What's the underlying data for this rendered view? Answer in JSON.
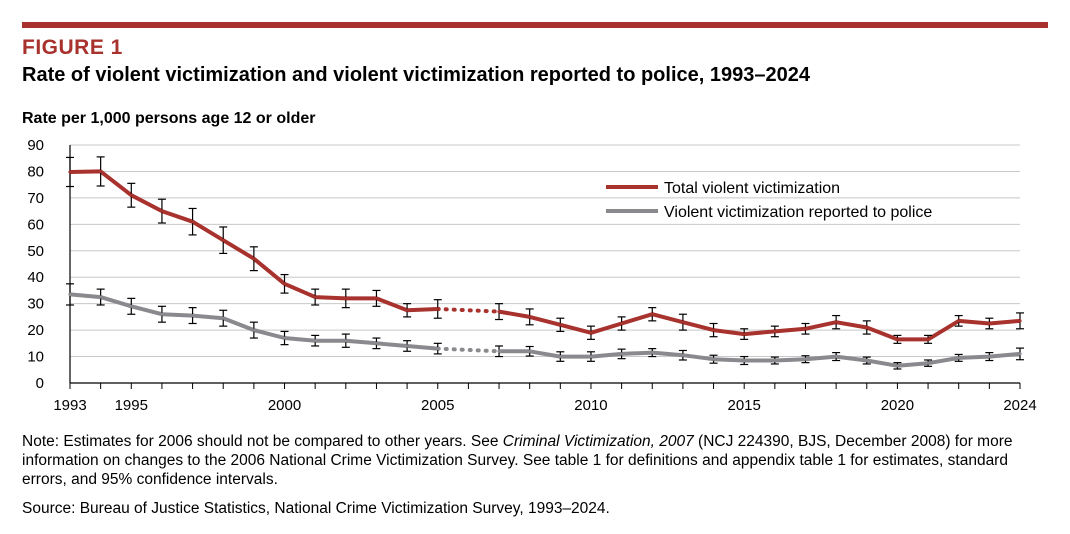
{
  "figure": {
    "label": "FIGURE 1",
    "title": "Rate of violent victimization and violent victimization reported to police, 1993–2024"
  },
  "notes": {
    "note_prefix": "Note: Estimates for 2006 should not be compared to other years. See ",
    "note_italic": "Criminal Victimization, 2007",
    "note_suffix": " (NCJ 224390, BJS, December 2008) for more information on changes to the 2006 National Crime Victimization Survey. See table 1 for definitions and appendix table 1 for estimates, standard errors, and 95% confidence intervals.",
    "source": "Source: Bureau of Justice Statistics, National Crime Victimization Survey, 1993–2024."
  },
  "colors": {
    "accent": "#a8322d",
    "total_series": "#a8322d",
    "reported_series": "#8a8a8e",
    "gridline": "#c8c8c8",
    "error_bar": "#000000"
  },
  "chart_data": {
    "type": "line",
    "title": "Rate of violent victimization and violent victimization reported to police, 1993–2024",
    "ylabel": "Rate per 1,000 persons age 12 or older",
    "xlabel": "",
    "ylim": [
      0,
      90
    ],
    "xlim": [
      1993,
      2024
    ],
    "yticks": [
      0,
      10,
      20,
      30,
      40,
      50,
      60,
      70,
      80,
      90
    ],
    "xticks": [
      1993,
      1995,
      2000,
      2005,
      2010,
      2015,
      2020,
      2024
    ],
    "grid": true,
    "legend_position": "upper-right",
    "gap_year": 2006,
    "series": [
      {
        "name": "Total violent victimization",
        "x": [
          1993,
          1994,
          1995,
          1996,
          1997,
          1998,
          1999,
          2000,
          2001,
          2002,
          2003,
          2004,
          2005,
          2007,
          2008,
          2009,
          2010,
          2011,
          2012,
          2013,
          2014,
          2015,
          2016,
          2017,
          2018,
          2019,
          2020,
          2021,
          2022,
          2023,
          2024
        ],
        "values": [
          79.8,
          80.0,
          71.0,
          65.0,
          61.0,
          54.0,
          47.0,
          37.5,
          32.5,
          32.0,
          32.0,
          27.5,
          28.0,
          27.0,
          25.0,
          22.0,
          19.0,
          22.5,
          26.0,
          23.0,
          20.0,
          18.5,
          19.5,
          20.5,
          23.0,
          21.0,
          16.5,
          16.5,
          23.5,
          22.5,
          23.5
        ],
        "err": [
          5.5,
          5.5,
          4.5,
          4.5,
          5.0,
          5.0,
          4.5,
          3.5,
          3.0,
          3.5,
          3.0,
          2.5,
          3.5,
          3.0,
          3.0,
          2.5,
          2.5,
          2.5,
          2.5,
          3.0,
          2.5,
          2.0,
          2.0,
          2.0,
          2.5,
          2.5,
          1.5,
          1.5,
          2.0,
          2.0,
          3.0
        ]
      },
      {
        "name": "Violent victimization reported to police",
        "x": [
          1993,
          1994,
          1995,
          1996,
          1997,
          1998,
          1999,
          2000,
          2001,
          2002,
          2003,
          2004,
          2005,
          2007,
          2008,
          2009,
          2010,
          2011,
          2012,
          2013,
          2014,
          2015,
          2016,
          2017,
          2018,
          2019,
          2020,
          2021,
          2022,
          2023,
          2024
        ],
        "values": [
          33.5,
          32.5,
          29.0,
          26.0,
          25.5,
          24.5,
          20.0,
          17.0,
          16.0,
          16.0,
          15.0,
          14.0,
          13.0,
          12.0,
          12.0,
          10.0,
          10.0,
          11.0,
          11.5,
          10.5,
          9.0,
          8.5,
          8.5,
          9.0,
          10.0,
          8.5,
          6.5,
          7.5,
          9.5,
          10.0,
          11.0
        ],
        "err": [
          4.0,
          3.0,
          3.0,
          3.0,
          3.0,
          3.0,
          3.0,
          2.5,
          2.0,
          2.5,
          2.0,
          2.0,
          2.0,
          2.0,
          1.8,
          1.8,
          1.8,
          1.8,
          1.5,
          1.8,
          1.5,
          1.5,
          1.3,
          1.3,
          1.5,
          1.3,
          1.2,
          1.2,
          1.3,
          1.5,
          2.2
        ]
      }
    ]
  }
}
